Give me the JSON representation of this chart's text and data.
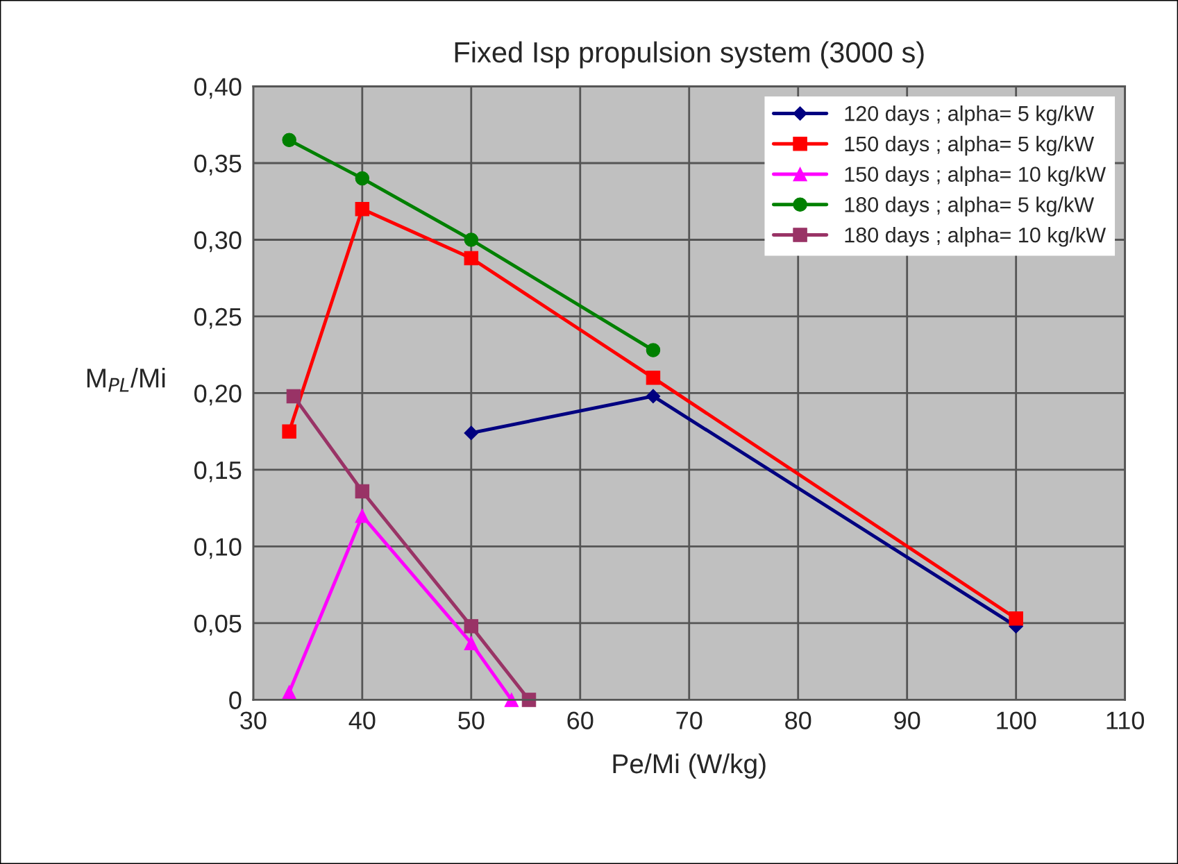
{
  "chart_data": {
    "type": "line",
    "title": "Fixed Isp propulsion system (3000 s)",
    "xlabel": "Pe/Mi (W/kg)",
    "ylabel": "M$_{PL}$/Mi",
    "xlim": [
      30,
      110
    ],
    "xticks": [
      30,
      40,
      50,
      60,
      70,
      80,
      90,
      100,
      110
    ],
    "ylim": [
      0,
      0.4
    ],
    "yticks": [
      {
        "value": 0,
        "label": "0"
      },
      {
        "value": 0.05,
        "label": "0,05"
      },
      {
        "value": 0.1,
        "label": "0,10"
      },
      {
        "value": 0.15,
        "label": "0,15"
      },
      {
        "value": 0.2,
        "label": "0,20"
      },
      {
        "value": 0.25,
        "label": "0,25"
      },
      {
        "value": 0.3,
        "label": "0,30"
      },
      {
        "value": 0.35,
        "label": "0,35"
      },
      {
        "value": 0.4,
        "label": "0,40"
      }
    ],
    "grid": true,
    "legend": "top right",
    "line_style": "solid",
    "series": [
      {
        "name": "120 days ; alpha= 5 kg/kW",
        "color": "#000080",
        "marker": "diamond",
        "x": [
          50,
          66.7,
          100
        ],
        "values": [
          0.174,
          0.198,
          0.048
        ]
      },
      {
        "name": "150 days ; alpha= 5 kg/kW",
        "color": "#ff0000",
        "marker": "square",
        "x": [
          33.3,
          40,
          50,
          66.7,
          100
        ],
        "values": [
          0.175,
          0.32,
          0.288,
          0.21,
          0.053
        ]
      },
      {
        "name": "150 days ; alpha= 10 kg/kW",
        "color": "#ff00ff",
        "marker": "triangle",
        "x": [
          33.3,
          40,
          50,
          53.7
        ],
        "values": [
          0.005,
          0.12,
          0.037,
          0
        ]
      },
      {
        "name": "180 days ; alpha= 5 kg/kW",
        "color": "#008000",
        "marker": "circle",
        "x": [
          33.3,
          40,
          50,
          66.7
        ],
        "values": [
          0.365,
          0.34,
          0.3,
          0.228
        ]
      },
      {
        "name": "180 days ; alpha= 10 kg/kW",
        "color": "#993366",
        "marker": "square",
        "x": [
          33.7,
          40,
          50,
          55.3
        ],
        "values": [
          0.198,
          0.136,
          0.048,
          0
        ]
      }
    ]
  }
}
